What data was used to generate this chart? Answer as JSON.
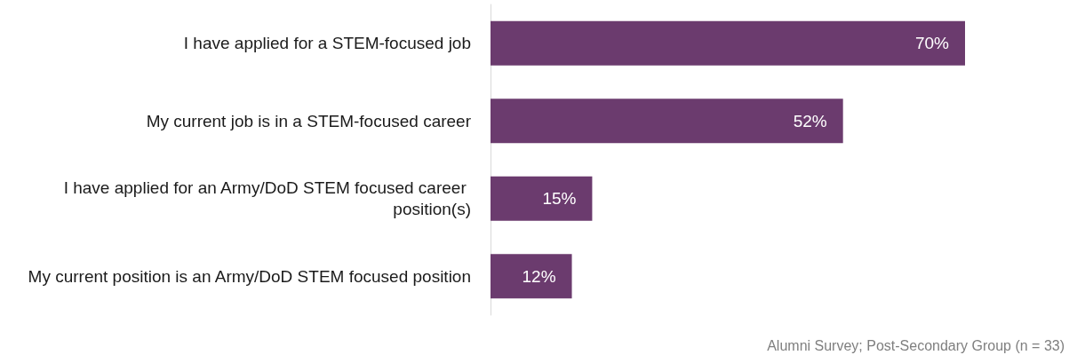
{
  "chart_data": {
    "type": "bar",
    "orientation": "horizontal",
    "categories": [
      "I have applied for a STEM-focused job",
      "My current job is in a STEM-focused career",
      "I have applied for an Army/DoD STEM focused career position(s)",
      "My current position is an Army/DoD STEM focused position"
    ],
    "values": [
      70,
      52,
      15,
      12
    ],
    "value_labels": [
      "70%",
      "52%",
      "15%",
      "12%"
    ],
    "color": "#6b3b6e",
    "grid": false,
    "annotations": [
      "Alumni Survey; Post-Secondary Group (n = 33)"
    ]
  }
}
